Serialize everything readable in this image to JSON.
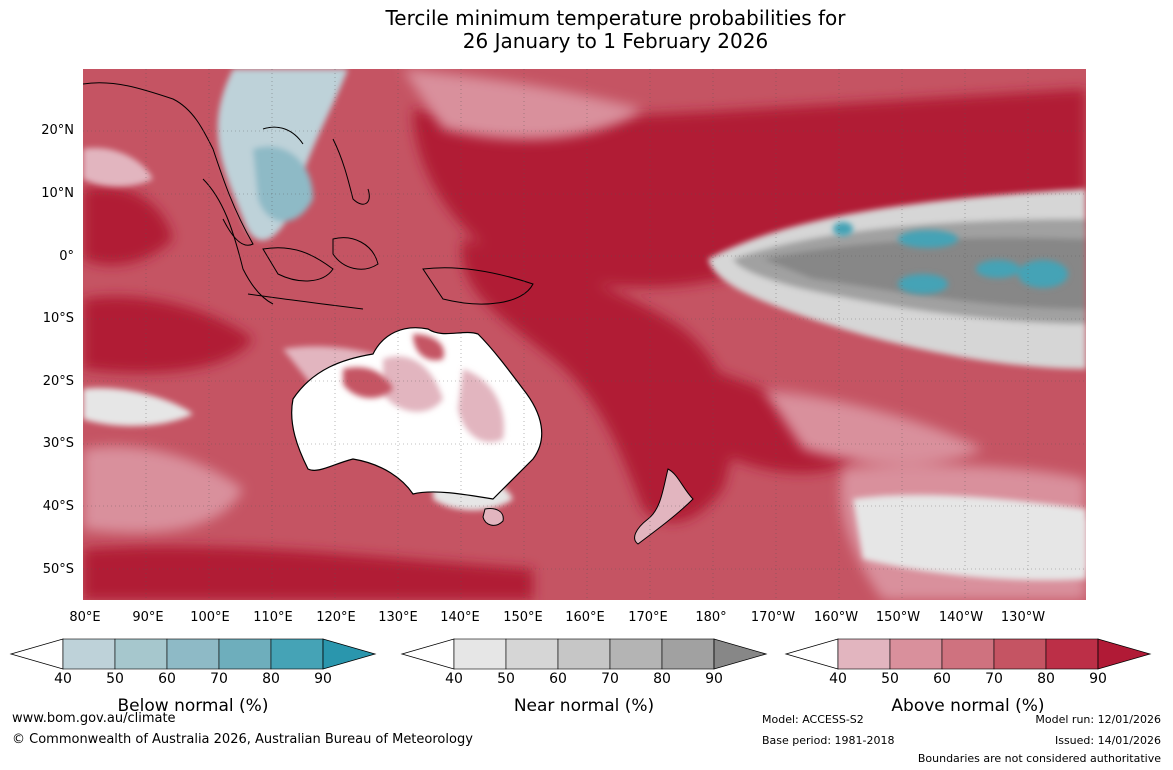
{
  "title": {
    "line1": "Tercile minimum temperature probabilities for",
    "line2": "26 January to 1 February 2026"
  },
  "map": {
    "lat_labels": [
      "20°N",
      "10°N",
      "0°",
      "10°S",
      "20°S",
      "30°S",
      "40°S",
      "50°S"
    ],
    "lon_labels": [
      "80°E",
      "90°E",
      "100°E",
      "110°E",
      "120°E",
      "130°E",
      "140°E",
      "150°E",
      "160°E",
      "170°E",
      "180°",
      "170°W",
      "160°W",
      "150°W",
      "140°W",
      "130°W"
    ]
  },
  "colorbars": {
    "ticks": [
      "40",
      "50",
      "60",
      "70",
      "80",
      "90"
    ],
    "below": {
      "title": "Below normal (%)",
      "colors": [
        "#ffffff",
        "#bed2d9",
        "#a6c7cd",
        "#8ebac6",
        "#6eaebc",
        "#45a3b6",
        "#2a96ad"
      ]
    },
    "near": {
      "title": "Near normal (%)",
      "colors": [
        "#ffffff",
        "#e6e6e6",
        "#d6d6d6",
        "#c6c6c6",
        "#b4b4b4",
        "#a1a1a1",
        "#878787"
      ]
    },
    "above": {
      "title": "Above normal (%)",
      "colors": [
        "#ffffff",
        "#e2b5bf",
        "#d9909c",
        "#cf727f",
        "#c55463",
        "#bc2f47",
        "#b11a36"
      ]
    }
  },
  "footer": {
    "website": "www.bom.gov.au/climate",
    "copyright": "© Commonwealth of Australia 2026, Australian Bureau of Meteorology",
    "model": "Model: ACCESS-S2",
    "base_period": "Base period: 1981-2018",
    "model_run": "Model run: 12/01/2026",
    "issued": "Issued: 14/01/2026",
    "disclaimer": "Boundaries are not considered authoritative"
  }
}
